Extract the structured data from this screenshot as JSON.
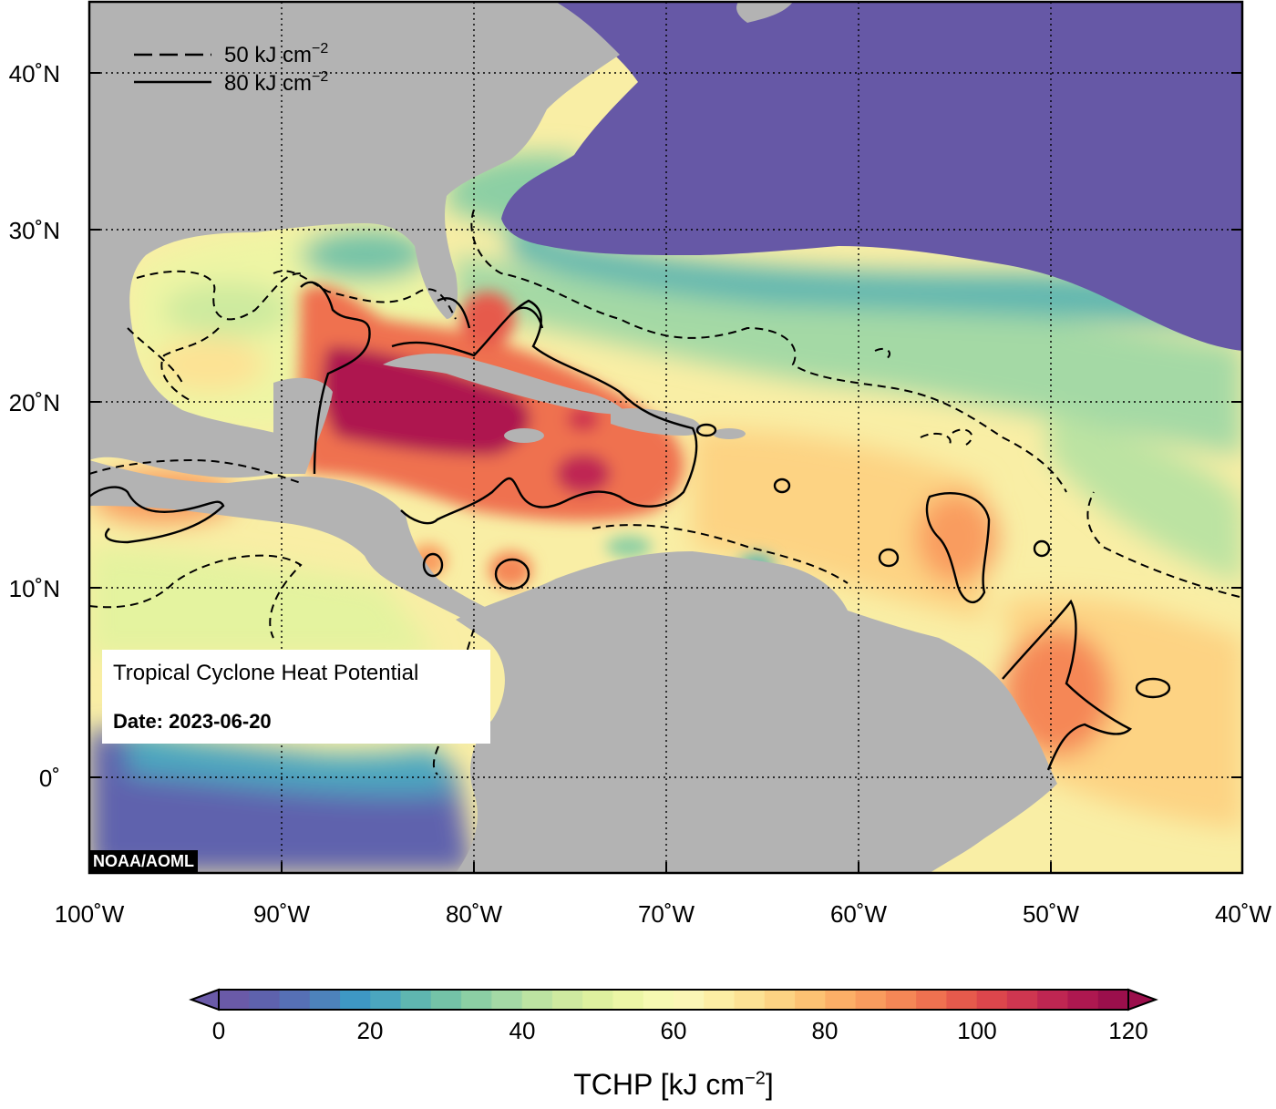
{
  "map": {
    "info": {
      "title": "Tropical Cyclone Heat Potential",
      "date": "Date: 2023-06-20"
    },
    "credit": "NOAA/AOML",
    "legend": {
      "dashed_label": "50 kJ cm",
      "solid_label": "80 kJ cm",
      "exponent": "−2"
    },
    "axes": {
      "lon_labels": [
        "100˚W",
        "90˚W",
        "80˚W",
        "70˚W",
        "60˚W",
        "50˚W",
        "40˚W"
      ],
      "lat_labels": [
        "40˚N",
        "30˚N",
        "20˚N",
        "10˚N",
        "0˚"
      ],
      "lon_range": [
        -100,
        -40
      ],
      "lat_range": [
        -5,
        44
      ]
    },
    "colorbar": {
      "title": "TCHP [kJ cm",
      "title_exponent": "−2",
      "title_close": "]",
      "ticks": [
        "0",
        "20",
        "40",
        "60",
        "80",
        "100",
        "120"
      ],
      "colors": [
        "#6a5aa8",
        "#5e62ad",
        "#5670b5",
        "#4d82bb",
        "#3e98c4",
        "#4ba6bf",
        "#5fb6b0",
        "#74c3a7",
        "#8ccfa4",
        "#a4d9a5",
        "#bce3a2",
        "#cfeaa0",
        "#def19f",
        "#ecf6a6",
        "#f6f9b2",
        "#fbf6b5",
        "#fdeea4",
        "#fde294",
        "#fdd383",
        "#fdc273",
        "#fcaf67",
        "#f99c5e",
        "#f58756",
        "#ef7150",
        "#e65a4c",
        "#dc464c",
        "#cf3650",
        "#bf2652",
        "#ae1850",
        "#9b0f4c"
      ]
    },
    "colors": {
      "land": "#b3b3b3",
      "cold_ocean": "#6658a6"
    }
  }
}
